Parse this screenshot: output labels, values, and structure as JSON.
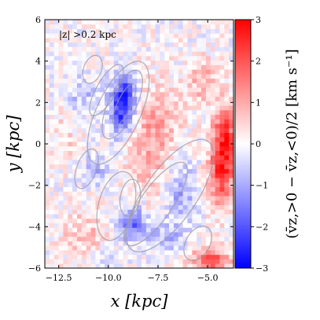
{
  "chart_data": {
    "type": "heatmap",
    "title": "",
    "annotation": "|z| >0.2 kpc",
    "xlabel": "x [kpc]",
    "ylabel": "y [kpc]",
    "xlim": [
      -13.2,
      -3.7
    ],
    "ylim": [
      -6,
      6
    ],
    "xticks": [
      -12.5,
      -10.0,
      -7.5,
      -5.0
    ],
    "xtick_labels": [
      "−12.5",
      "−10.0",
      "−7.5",
      "−5.0"
    ],
    "yticks": [
      -6,
      -4,
      -2,
      0,
      2,
      4,
      6
    ],
    "ytick_labels": [
      "−6",
      "−4",
      "−2",
      "0",
      "2",
      "4",
      "6"
    ],
    "colorbar": {
      "label": "(v̄z,>0 − v̄z,<0)/2 [km s⁻¹]",
      "vmin": -3,
      "vmax": 3,
      "ticks": [
        -3,
        -2,
        -1,
        0,
        1,
        2,
        3
      ],
      "tick_labels": [
        "−3",
        "−2",
        "−1",
        "0",
        "1",
        "2",
        "3"
      ],
      "colormap": "bwr",
      "low_color": "#0000ff",
      "mid_color": "#ffffff",
      "high_color": "#ff0000"
    },
    "blobs": [
      {
        "x": -9.3,
        "y": 1.6,
        "sx": 0.45,
        "sy": 0.9,
        "v": -2.4
      },
      {
        "x": -9.1,
        "y": 2.6,
        "sx": 0.4,
        "sy": 0.6,
        "v": -1.2
      },
      {
        "x": -8.8,
        "y": -3.8,
        "sx": 0.55,
        "sy": 0.6,
        "v": -1.8
      },
      {
        "x": -6.4,
        "y": -2.4,
        "sx": 0.6,
        "sy": 1.2,
        "v": -1.1
      },
      {
        "x": -10.6,
        "y": -1.2,
        "sx": 0.5,
        "sy": 0.6,
        "v": -0.8
      },
      {
        "x": -11.3,
        "y": 2.3,
        "sx": 0.7,
        "sy": 0.7,
        "v": -0.7
      },
      {
        "x": -7.2,
        "y": -4.6,
        "sx": 0.6,
        "sy": 0.5,
        "v": -0.8
      },
      {
        "x": -4.3,
        "y": -1.3,
        "sx": 0.45,
        "sy": 1.2,
        "v": 2.3
      },
      {
        "x": -4.1,
        "y": 0.6,
        "sx": 0.4,
        "sy": 1.0,
        "v": 1.8
      },
      {
        "x": -4.9,
        "y": -5.6,
        "sx": 0.7,
        "sy": 0.4,
        "v": 2.0
      },
      {
        "x": -7.8,
        "y": 1.1,
        "sx": 0.9,
        "sy": 1.3,
        "v": 0.9
      },
      {
        "x": -7.8,
        "y": -1.2,
        "sx": 1.0,
        "sy": 1.6,
        "v": 0.6
      },
      {
        "x": -11.2,
        "y": -4.4,
        "sx": 0.8,
        "sy": 0.9,
        "v": 0.7
      },
      {
        "x": -12.2,
        "y": 0.4,
        "sx": 0.5,
        "sy": 1.0,
        "v": 0.5
      },
      {
        "x": -5.2,
        "y": 3.0,
        "sx": 0.6,
        "sy": 0.8,
        "v": 0.9
      },
      {
        "x": -10.3,
        "y": -5.5,
        "sx": 0.6,
        "sy": 0.4,
        "v": -0.6
      }
    ],
    "contours": [
      {
        "x": -9.2,
        "y": 1.9,
        "rx": 0.35,
        "ry": 1.1,
        "rot": 25
      },
      {
        "x": -9.3,
        "y": 1.9,
        "rx": 0.7,
        "ry": 1.8,
        "rot": 25
      },
      {
        "x": -9.5,
        "y": 1.5,
        "rx": 1.1,
        "ry": 2.7,
        "rot": 25
      },
      {
        "x": -10.1,
        "y": 2.6,
        "rx": 0.5,
        "ry": 1.4,
        "rot": 30
      },
      {
        "x": -9.6,
        "y": -3.0,
        "rx": 0.9,
        "ry": 1.7,
        "rot": 15
      },
      {
        "x": -8.9,
        "y": -2.6,
        "rx": 0.5,
        "ry": 0.9,
        "rot": 10
      },
      {
        "x": -7.6,
        "y": -2.9,
        "rx": 0.8,
        "ry": 2.4,
        "rot": 35
      },
      {
        "x": -6.9,
        "y": -2.5,
        "rx": 1.3,
        "ry": 3.2,
        "rot": 35
      },
      {
        "x": -5.5,
        "y": -4.8,
        "rx": 0.6,
        "ry": 0.9,
        "rot": 30
      },
      {
        "x": -11.1,
        "y": -1.2,
        "rx": 0.5,
        "ry": 1.0,
        "rot": 20
      },
      {
        "x": -10.8,
        "y": 3.6,
        "rx": 0.45,
        "ry": 0.7,
        "rot": 20
      }
    ],
    "grid": false
  }
}
